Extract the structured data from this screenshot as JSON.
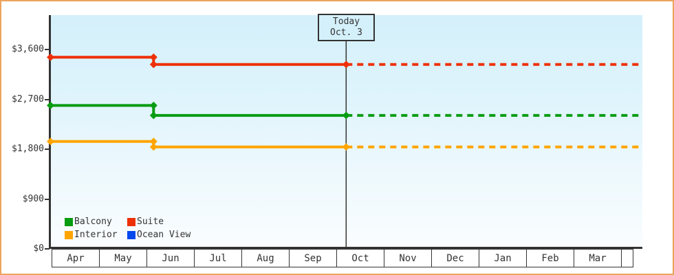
{
  "frame": {
    "border_color": "#eaa55c",
    "background": "#ffffff"
  },
  "chart_data": {
    "type": "line",
    "title": "",
    "description": "Cabin price history by month; solid lines are recorded prices, dashed lines are the projection after today",
    "x_axis": {
      "categories": [
        "Apr",
        "May",
        "Jun",
        "Jul",
        "Aug",
        "Sep",
        "Oct",
        "Nov",
        "Dec",
        "Jan",
        "Feb",
        "Mar"
      ]
    },
    "y_axis": {
      "ticks": [
        {
          "label": "$0",
          "value": 0
        },
        {
          "label": "$900",
          "value": 900
        },
        {
          "label": "$1,800",
          "value": 1800
        },
        {
          "label": "$2,700",
          "value": 2700
        },
        {
          "label": "$3,600",
          "value": 3600
        }
      ],
      "min": 0,
      "max": 4220,
      "grid": false
    },
    "today": {
      "line1": "Today",
      "line2": "Oct. 3",
      "month_position": 6.09,
      "line_color": "#333333"
    },
    "projection_end_month_position": 12.25,
    "series": [
      {
        "name": "Balcony",
        "color": "#089c12",
        "history": [
          {
            "m": -0.05,
            "value": 2590
          },
          {
            "m": 2.09,
            "value": 2590
          },
          {
            "m": 2.09,
            "value": 2410
          },
          {
            "m": 6.09,
            "value": 2410
          }
        ],
        "projection_value": 2410
      },
      {
        "name": "Suite",
        "color": "#ee3007",
        "history": [
          {
            "m": -0.05,
            "value": 3460
          },
          {
            "m": 2.09,
            "value": 3460
          },
          {
            "m": 2.09,
            "value": 3330
          },
          {
            "m": 6.09,
            "value": 3330
          }
        ],
        "projection_value": 3330
      },
      {
        "name": "Interior",
        "color": "#ffa502",
        "history": [
          {
            "m": -0.05,
            "value": 1940
          },
          {
            "m": 2.09,
            "value": 1940
          },
          {
            "m": 2.09,
            "value": 1840
          },
          {
            "m": 6.09,
            "value": 1840
          }
        ],
        "projection_value": 1840
      },
      {
        "name": "Ocean View",
        "color": "#0448ee",
        "history": [],
        "projection_value": null
      }
    ],
    "legend": {
      "position": "bottom-left-inside-plot",
      "items": [
        {
          "label": "Balcony",
          "color": "#089c12"
        },
        {
          "label": "Suite",
          "color": "#ee3007"
        },
        {
          "label": "Interior",
          "color": "#ffa502"
        },
        {
          "label": "Ocean View",
          "color": "#0448ee"
        }
      ]
    }
  }
}
